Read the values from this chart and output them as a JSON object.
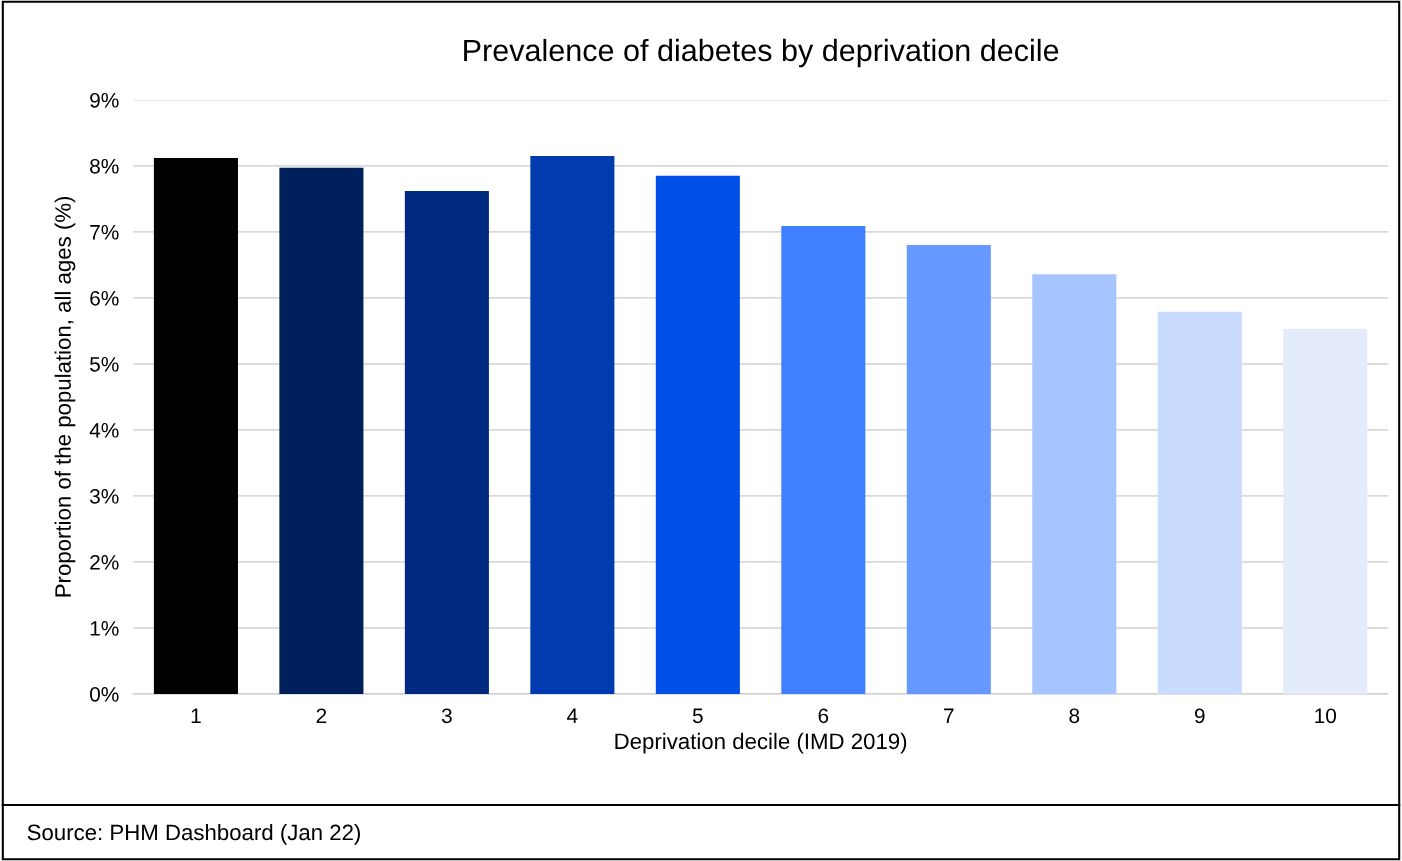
{
  "chart_data": {
    "type": "bar",
    "title": "Prevalence of diabetes by deprivation decile",
    "xlabel": "Deprivation decile (IMD 2019)",
    "ylabel": "Proportion of the population, all ages (%)",
    "categories": [
      "1",
      "2",
      "3",
      "4",
      "5",
      "6",
      "7",
      "8",
      "9",
      "10"
    ],
    "values": [
      8.12,
      7.97,
      7.62,
      8.15,
      7.85,
      7.09,
      6.8,
      6.36,
      5.79,
      5.53
    ],
    "colors": [
      "#000000",
      "#00205b",
      "#002a80",
      "#003cb0",
      "#0050e8",
      "#4080ff",
      "#6699ff",
      "#a6c4ff",
      "#c9dbff",
      "#e4ecfc"
    ],
    "ylim": [
      0,
      9
    ],
    "yticks": [
      {
        "value": 0,
        "label": "0%"
      },
      {
        "value": 1,
        "label": "1%"
      },
      {
        "value": 2,
        "label": "2%"
      },
      {
        "value": 3,
        "label": "3%"
      },
      {
        "value": 4,
        "label": "4%"
      },
      {
        "value": 5,
        "label": "5%"
      },
      {
        "value": 6,
        "label": "6%"
      },
      {
        "value": 7,
        "label": "7%"
      },
      {
        "value": 8,
        "label": "8%"
      },
      {
        "value": 9,
        "label": "9%"
      }
    ],
    "grid": "y",
    "legend": false,
    "annotations": [
      "Source: PHM Dashboard (Jan 22)"
    ]
  }
}
